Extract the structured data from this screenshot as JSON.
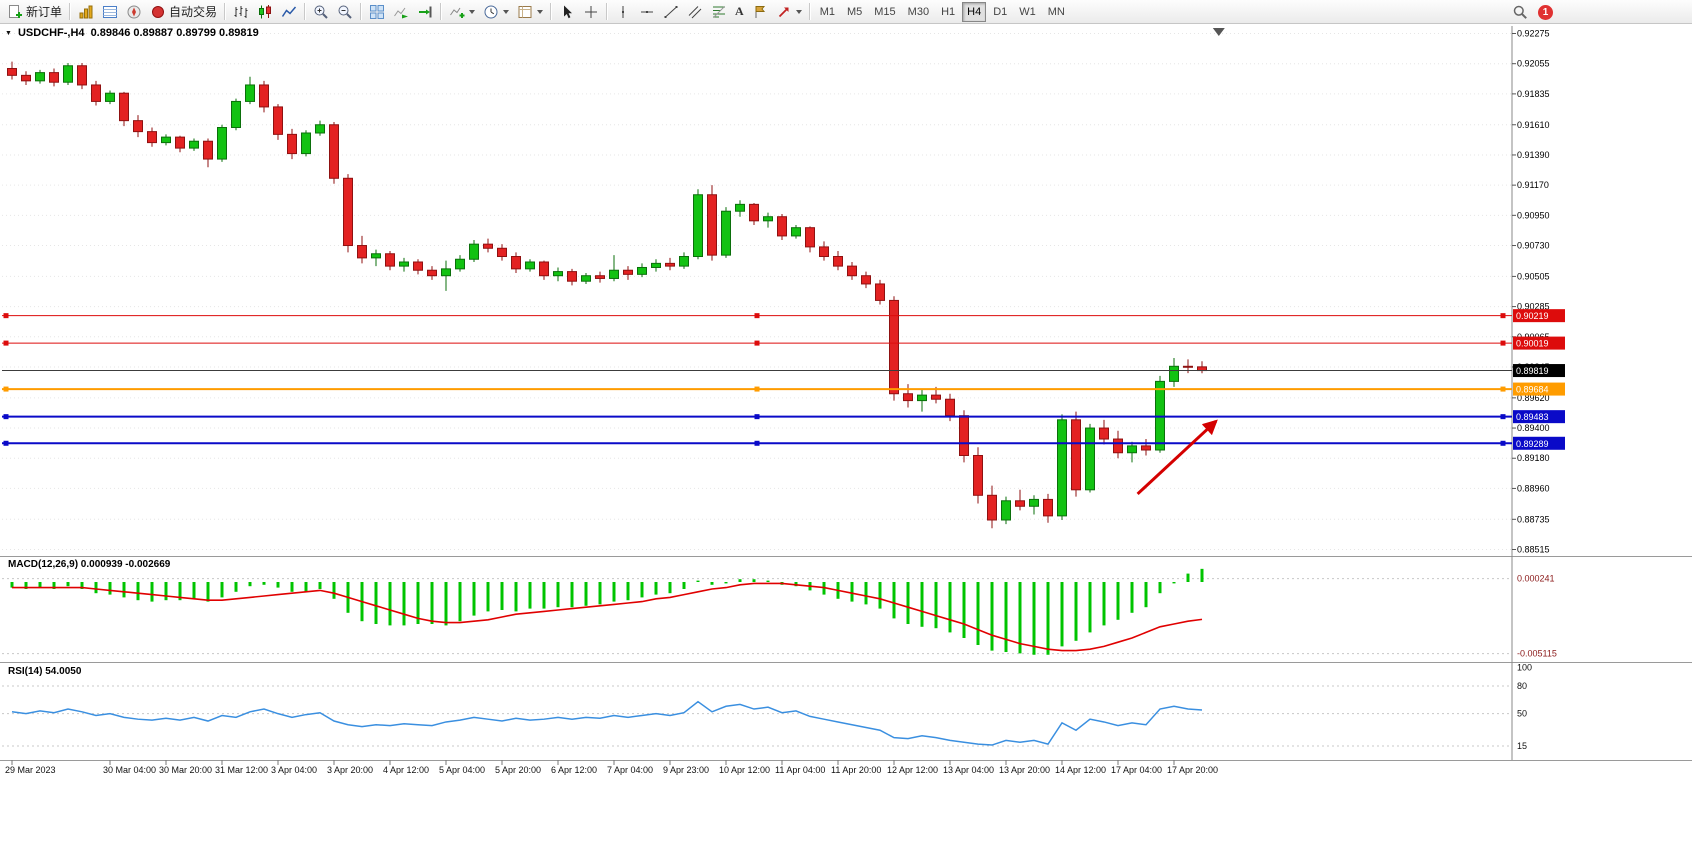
{
  "toolbar": {
    "new_order_label": "新订单",
    "autotrading_label": "自动交易",
    "timeframes": [
      "M1",
      "M5",
      "M15",
      "M30",
      "H1",
      "H4",
      "D1",
      "W1",
      "MN"
    ],
    "active_timeframe": "H4",
    "notification_count": "1",
    "icon_names": [
      "new-order-icon",
      "market-watch-icon",
      "data-window-icon",
      "navigator-icon",
      "autotrading-icon",
      "bar-chart-icon",
      "candlestick-chart-icon",
      "line-chart-icon",
      "zoom-in-icon",
      "zoom-out-icon",
      "tile-windows-icon",
      "auto-scroll-icon",
      "chart-shift-icon",
      "indicators-icon",
      "periods-icon",
      "templates-icon",
      "cursor-icon",
      "crosshair-icon",
      "vertical-line-icon",
      "horizontal-line-icon",
      "trendline-icon",
      "channel-icon",
      "fibonacci-icon",
      "text-icon",
      "label-icon",
      "arrows-icon",
      "search-icon",
      "notification-badge"
    ]
  },
  "chart": {
    "title": "USDCHF-,H4",
    "ohlc": "0.89846 0.89887 0.89799 0.89819"
  },
  "indicators": {
    "macd_label": "MACD(12,26,9) 0.000939 -0.002669",
    "rsi_label": "RSI(14) 54.0050"
  },
  "chart_data": [
    {
      "type": "candlestick",
      "symbol": "USDCHF-",
      "period": "H4",
      "ohlc_current": {
        "open": 0.89846,
        "high": 0.89887,
        "low": 0.89799,
        "close": 0.89819
      },
      "ylim": [
        0.88515,
        0.92275
      ],
      "price_axis_ticks": [
        "0.92275",
        "0.92055",
        "0.91835",
        "0.91610",
        "0.91390",
        "0.91170",
        "0.90950",
        "0.90730",
        "0.90505",
        "0.90285",
        "0.90065",
        "0.89845",
        "0.89620",
        "0.89400",
        "0.89180",
        "0.88960",
        "0.88735",
        "0.88515"
      ],
      "time_labels": [
        "29 Mar 2023",
        "30 Mar 04:00",
        "30 Mar 20:00",
        "31 Mar 12:00",
        "3 Apr 04:00",
        "3 Apr 20:00",
        "4 Apr 12:00",
        "5 Apr 04:00",
        "5 Apr 20:00",
        "6 Apr 12:00",
        "7 Apr 04:00",
        "9 Apr 23:00",
        "10 Apr 12:00",
        "11 Apr 04:00",
        "11 Apr 20:00",
        "12 Apr 12:00",
        "13 Apr 04:00",
        "13 Apr 20:00",
        "14 Apr 12:00",
        "17 Apr 04:00",
        "17 Apr 20:00"
      ],
      "time_label_candle_indices": [
        0,
        7,
        11,
        15,
        19,
        23,
        27,
        31,
        35,
        39,
        43,
        47,
        51,
        55,
        59,
        63,
        67,
        71,
        75,
        79,
        83
      ],
      "colors": {
        "bull": "#12c212",
        "bull_border": "#0b6f0b",
        "bear": "#e32222",
        "bear_border": "#8f1111"
      },
      "candles": [
        [
          0.9202,
          0.9207,
          0.9194,
          0.9197
        ],
        [
          0.9197,
          0.92,
          0.919,
          0.9193
        ],
        [
          0.9193,
          0.9201,
          0.9191,
          0.9199
        ],
        [
          0.9199,
          0.9202,
          0.9189,
          0.9192
        ],
        [
          0.9192,
          0.9206,
          0.919,
          0.9204
        ],
        [
          0.9204,
          0.9206,
          0.9187,
          0.919
        ],
        [
          0.919,
          0.9193,
          0.9175,
          0.9178
        ],
        [
          0.9178,
          0.9186,
          0.9176,
          0.9184
        ],
        [
          0.9184,
          0.9185,
          0.916,
          0.9164
        ],
        [
          0.9164,
          0.9168,
          0.9152,
          0.9156
        ],
        [
          0.9156,
          0.9159,
          0.9145,
          0.9148
        ],
        [
          0.9148,
          0.9154,
          0.9146,
          0.9152
        ],
        [
          0.9152,
          0.9153,
          0.9141,
          0.9144
        ],
        [
          0.9144,
          0.9151,
          0.9142,
          0.9149
        ],
        [
          0.9149,
          0.9151,
          0.913,
          0.9136
        ],
        [
          0.9136,
          0.9161,
          0.9134,
          0.9159
        ],
        [
          0.9159,
          0.918,
          0.9157,
          0.9178
        ],
        [
          0.9178,
          0.9196,
          0.9176,
          0.919
        ],
        [
          0.919,
          0.9193,
          0.917,
          0.9174
        ],
        [
          0.9174,
          0.9176,
          0.915,
          0.9154
        ],
        [
          0.9154,
          0.9158,
          0.9136,
          0.914
        ],
        [
          0.914,
          0.9157,
          0.9138,
          0.9155
        ],
        [
          0.9155,
          0.9164,
          0.9153,
          0.9161
        ],
        [
          0.9161,
          0.9163,
          0.9118,
          0.9122
        ],
        [
          0.9122,
          0.9125,
          0.9068,
          0.9073
        ],
        [
          0.9073,
          0.908,
          0.906,
          0.9064
        ],
        [
          0.9064,
          0.907,
          0.9058,
          0.9067
        ],
        [
          0.9067,
          0.9069,
          0.9055,
          0.9058
        ],
        [
          0.9058,
          0.9064,
          0.9054,
          0.9061
        ],
        [
          0.9061,
          0.9063,
          0.9052,
          0.9055
        ],
        [
          0.9055,
          0.9058,
          0.9048,
          0.9051
        ],
        [
          0.9051,
          0.9062,
          0.904,
          0.9056
        ],
        [
          0.9056,
          0.9066,
          0.9054,
          0.9063
        ],
        [
          0.9063,
          0.9077,
          0.9061,
          0.9074
        ],
        [
          0.9074,
          0.9078,
          0.9068,
          0.9071
        ],
        [
          0.9071,
          0.9074,
          0.9062,
          0.9065
        ],
        [
          0.9065,
          0.9068,
          0.9053,
          0.9056
        ],
        [
          0.9056,
          0.9063,
          0.9054,
          0.9061
        ],
        [
          0.9061,
          0.9062,
          0.9048,
          0.9051
        ],
        [
          0.9051,
          0.9057,
          0.9047,
          0.9054
        ],
        [
          0.9054,
          0.9056,
          0.9044,
          0.9047
        ],
        [
          0.9047,
          0.9053,
          0.9045,
          0.9051
        ],
        [
          0.9051,
          0.9054,
          0.9046,
          0.9049
        ],
        [
          0.9049,
          0.9066,
          0.9047,
          0.9055
        ],
        [
          0.9055,
          0.9058,
          0.9048,
          0.9052
        ],
        [
          0.9052,
          0.906,
          0.905,
          0.9057
        ],
        [
          0.9057,
          0.9063,
          0.9054,
          0.906
        ],
        [
          0.906,
          0.9064,
          0.9055,
          0.9058
        ],
        [
          0.9058,
          0.9068,
          0.9056,
          0.9065
        ],
        [
          0.9065,
          0.9114,
          0.9063,
          0.911
        ],
        [
          0.911,
          0.9117,
          0.9062,
          0.9066
        ],
        [
          0.9066,
          0.9101,
          0.9064,
          0.9098
        ],
        [
          0.9098,
          0.9106,
          0.9094,
          0.9103
        ],
        [
          0.9103,
          0.9104,
          0.9088,
          0.9091
        ],
        [
          0.9091,
          0.9097,
          0.9086,
          0.9094
        ],
        [
          0.9094,
          0.9096,
          0.9077,
          0.908
        ],
        [
          0.908,
          0.9088,
          0.9078,
          0.9086
        ],
        [
          0.9086,
          0.9087,
          0.9068,
          0.9072
        ],
        [
          0.9072,
          0.9076,
          0.9062,
          0.9065
        ],
        [
          0.9065,
          0.9069,
          0.9055,
          0.9058
        ],
        [
          0.9058,
          0.9061,
          0.9048,
          0.9051
        ],
        [
          0.9051,
          0.9054,
          0.9042,
          0.9045
        ],
        [
          0.9045,
          0.9048,
          0.903,
          0.9033
        ],
        [
          0.9033,
          0.9036,
          0.896,
          0.8965
        ],
        [
          0.8965,
          0.8972,
          0.8955,
          0.896
        ],
        [
          0.896,
          0.8968,
          0.8952,
          0.8964
        ],
        [
          0.8964,
          0.897,
          0.8958,
          0.8961
        ],
        [
          0.8961,
          0.8965,
          0.8945,
          0.8949
        ],
        [
          0.8949,
          0.8953,
          0.8915,
          0.892
        ],
        [
          0.892,
          0.8926,
          0.8885,
          0.8891
        ],
        [
          0.8891,
          0.8898,
          0.8867,
          0.8873
        ],
        [
          0.8873,
          0.889,
          0.887,
          0.8887
        ],
        [
          0.8887,
          0.8895,
          0.888,
          0.8883
        ],
        [
          0.8883,
          0.8891,
          0.8877,
          0.8888
        ],
        [
          0.8888,
          0.8892,
          0.8871,
          0.8876
        ],
        [
          0.8876,
          0.895,
          0.8873,
          0.8946
        ],
        [
          0.8946,
          0.8952,
          0.889,
          0.8895
        ],
        [
          0.8895,
          0.8943,
          0.8893,
          0.894
        ],
        [
          0.894,
          0.8946,
          0.8928,
          0.8932
        ],
        [
          0.8932,
          0.8938,
          0.8918,
          0.8922
        ],
        [
          0.8922,
          0.893,
          0.8915,
          0.8927
        ],
        [
          0.8927,
          0.8932,
          0.892,
          0.8924
        ],
        [
          0.8924,
          0.8978,
          0.8922,
          0.8974
        ],
        [
          0.8974,
          0.8991,
          0.897,
          0.8985
        ],
        [
          0.8985,
          0.899,
          0.898,
          0.89846
        ],
        [
          0.89846,
          0.89887,
          0.89799,
          0.89819
        ]
      ],
      "horizontal_lines": [
        {
          "price": 0.90219,
          "label": "0.90219",
          "color": "#dd0c0c",
          "label_bg": "#dd0c0c",
          "width": 1
        },
        {
          "price": 0.90019,
          "label": "0.90019",
          "color": "#dd0c0c",
          "label_bg": "#dd0c0c",
          "width": 1
        },
        {
          "price": 0.89684,
          "label": "0.89684",
          "color": "#ff9c00",
          "label_bg": "#ff9c00",
          "width": 2
        },
        {
          "price": 0.89483,
          "label": "0.89483",
          "color": "#0a0ac8",
          "label_bg": "#0a0ac8",
          "width": 2
        },
        {
          "price": 0.89289,
          "label": "0.89289",
          "color": "#0a0ac8",
          "label_bg": "#0a0ac8",
          "width": 2
        }
      ],
      "bid_line": {
        "price": 0.89819,
        "label": "0.89819",
        "color": "#3c3c3c",
        "label_bg": "#000000"
      },
      "arrow": {
        "from_candle": 80.4,
        "from_price": 0.8892,
        "to_candle": 86.0,
        "to_price": 0.8945,
        "color": "#d40000"
      },
      "shift_marker_candle": 86.2
    },
    {
      "type": "bar",
      "name": "MACD(12,26,9)",
      "bar_color": "#00c400",
      "signal_color": "#e00000",
      "axis_ticks": [
        "0.000241",
        "-0.005115"
      ],
      "axis_tick_values": [
        0.000241,
        -0.005115
      ],
      "values": [
        -0.0004,
        -0.0005,
        -0.0004,
        -0.0005,
        -0.0003,
        -0.0005,
        -0.0008,
        -0.0009,
        -0.0011,
        -0.0013,
        -0.0014,
        -0.0013,
        -0.0013,
        -0.0012,
        -0.0014,
        -0.0011,
        -0.0007,
        -0.0003,
        -0.0002,
        -0.0004,
        -0.0007,
        -0.0007,
        -0.0005,
        -0.0012,
        -0.0022,
        -0.0028,
        -0.003,
        -0.0031,
        -0.0031,
        -0.003,
        -0.003,
        -0.0031,
        -0.0028,
        -0.0024,
        -0.0021,
        -0.002,
        -0.0021,
        -0.0019,
        -0.0019,
        -0.0018,
        -0.0018,
        -0.0017,
        -0.0016,
        -0.0014,
        -0.0013,
        -0.0011,
        -0.0009,
        -0.0008,
        -0.0005,
        0.0001,
        -0.0002,
        -0.0001,
        0.0002,
        0.0002,
        0.0001,
        -0.0002,
        -0.0003,
        -0.0006,
        -0.0009,
        -0.0012,
        -0.0014,
        -0.0016,
        -0.0019,
        -0.0026,
        -0.003,
        -0.0032,
        -0.0033,
        -0.0036,
        -0.004,
        -0.0045,
        -0.0049,
        -0.005,
        -0.0051,
        -0.0052,
        -0.0052,
        -0.0046,
        -0.0042,
        -0.0036,
        -0.0031,
        -0.0027,
        -0.0022,
        -0.0018,
        -0.0008,
        -0.0001,
        0.0006,
        0.000939
      ],
      "signal": [
        -0.0004,
        -0.0004,
        -0.0004,
        -0.0004,
        -0.0004,
        -0.0004,
        -0.0005,
        -0.0006,
        -0.0007,
        -0.0008,
        -0.0009,
        -0.001,
        -0.0011,
        -0.0012,
        -0.0013,
        -0.0013,
        -0.0012,
        -0.0011,
        -0.001,
        -0.0009,
        -0.0008,
        -0.0007,
        -0.0006,
        -0.0008,
        -0.0011,
        -0.0014,
        -0.0017,
        -0.002,
        -0.0023,
        -0.0026,
        -0.0028,
        -0.0029,
        -0.0029,
        -0.0028,
        -0.0027,
        -0.0025,
        -0.0023,
        -0.0022,
        -0.0021,
        -0.002,
        -0.0019,
        -0.0018,
        -0.0017,
        -0.0016,
        -0.0015,
        -0.0014,
        -0.0012,
        -0.0011,
        -0.0009,
        -0.0007,
        -0.0005,
        -0.0004,
        -0.0002,
        -0.0001,
        -0.0001,
        -0.0001,
        -0.0002,
        -0.0003,
        -0.0004,
        -0.0006,
        -0.0008,
        -0.001,
        -0.0012,
        -0.0015,
        -0.0018,
        -0.0021,
        -0.0024,
        -0.0027,
        -0.003,
        -0.0034,
        -0.0038,
        -0.0041,
        -0.0044,
        -0.0046,
        -0.0048,
        -0.0049,
        -0.0049,
        -0.0048,
        -0.0046,
        -0.0043,
        -0.004,
        -0.0036,
        -0.0032,
        -0.003,
        -0.0028,
        -0.002669
      ]
    },
    {
      "type": "line",
      "name": "RSI(14)",
      "current_value": 54.005,
      "line_color": "#3a8fe0",
      "levels": [
        80,
        50,
        15
      ],
      "axis_ticks": [
        "100",
        "80",
        "50",
        "15"
      ],
      "values": [
        52,
        50,
        53,
        51,
        55,
        52,
        48,
        50,
        46,
        44,
        43,
        45,
        43,
        46,
        42,
        48,
        46,
        52,
        55,
        50,
        46,
        49,
        51,
        42,
        38,
        36,
        38,
        37,
        39,
        38,
        37,
        41,
        43,
        46,
        44,
        42,
        45,
        43,
        44,
        46,
        44,
        46,
        45,
        48,
        46,
        48,
        50,
        48,
        51,
        63,
        52,
        58,
        60,
        55,
        57,
        51,
        53,
        47,
        44,
        41,
        38,
        35,
        32,
        24,
        23,
        26,
        24,
        21,
        19,
        17,
        16,
        21,
        19,
        21,
        17,
        40,
        32,
        44,
        41,
        37,
        40,
        38,
        55,
        58,
        55,
        54.005
      ]
    }
  ]
}
